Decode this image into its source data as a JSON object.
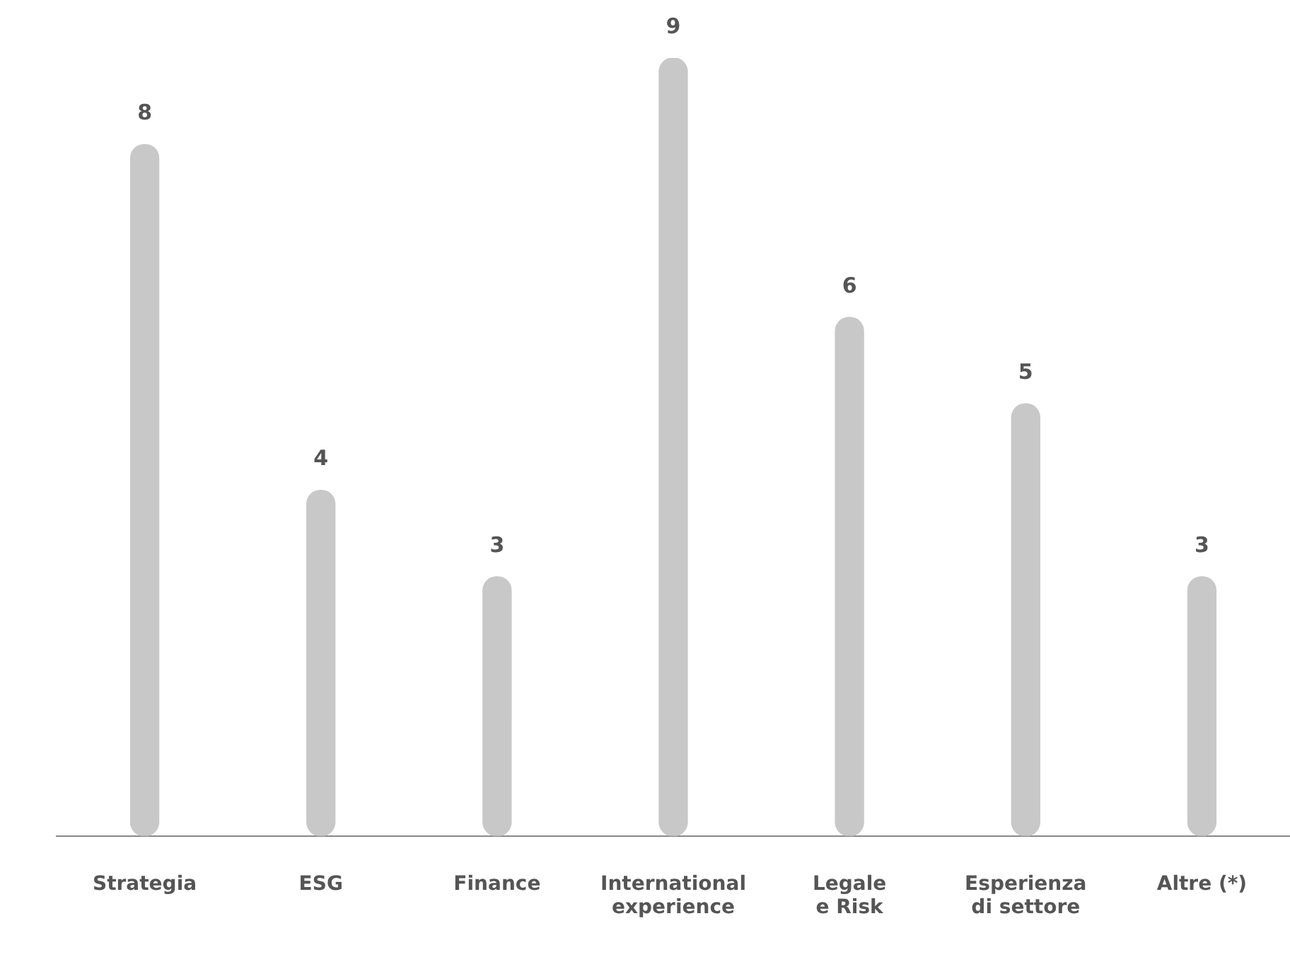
{
  "chart_data": {
    "type": "bar",
    "categories": [
      "Strategia",
      "ESG",
      "Finance",
      "International\nexperience",
      "Legale\ne Risk",
      "Esperienza\ndi settore",
      "Altre (*)"
    ],
    "values": [
      8,
      4,
      3,
      9,
      6,
      5,
      3
    ],
    "color": "#c8c8c8",
    "data_labels": true,
    "grid": false,
    "legend": false,
    "tick_labels": "x"
  }
}
